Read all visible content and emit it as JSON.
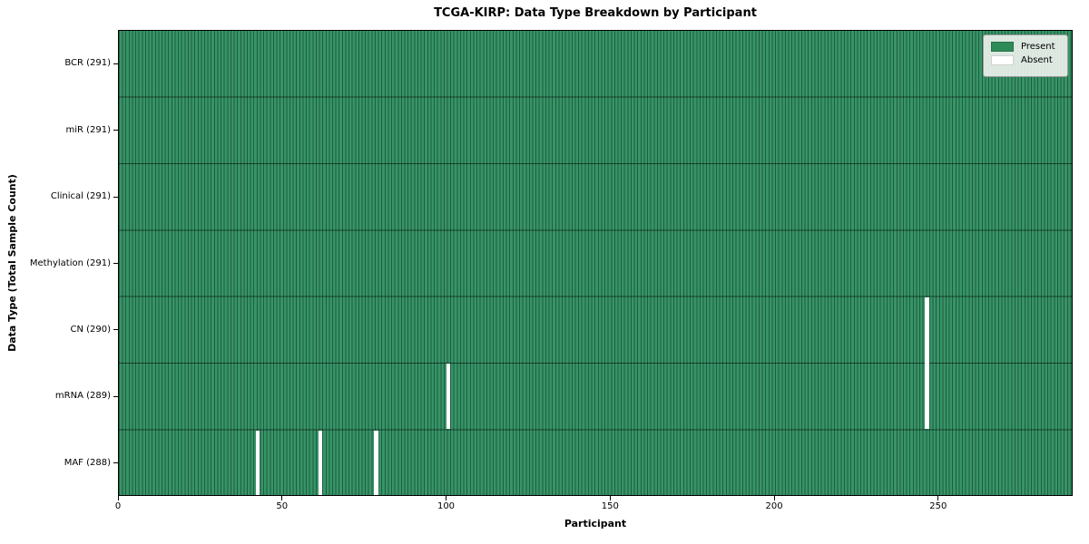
{
  "figure": {
    "title": "TCGA-KIRP: Data Type Breakdown by Participant",
    "xlabel": "Participant",
    "ylabel": "Data Type (Total Sample Count)"
  },
  "colors": {
    "present": "#2e8b57",
    "present_fill": "#389468",
    "cell_edge": "#1d5e3e",
    "row_separator": "rgba(0, 0, 0, 0.55)",
    "absent": "#ffffff",
    "frame": "#000000",
    "legend_background": "#ecf0ec",
    "legend_border": "#9a9a9a"
  },
  "chart_data": {
    "type": "heatmap",
    "title": "TCGA-KIRP: Data Type Breakdown by Participant",
    "xlabel": "Participant",
    "ylabel": "Data Type (Total Sample Count)",
    "xlim": [
      0,
      291
    ],
    "x_ticks": [
      0,
      50,
      100,
      150,
      200,
      250
    ],
    "n_participants": 291,
    "cell_edges": true,
    "legend_position": "upper right",
    "rows": [
      {
        "label": "BCR (291)",
        "name": "BCR",
        "count": 291,
        "absent_participants": []
      },
      {
        "label": "miR (291)",
        "name": "miR",
        "count": 291,
        "absent_participants": []
      },
      {
        "label": "Clinical (291)",
        "name": "Clinical",
        "count": 291,
        "absent_participants": []
      },
      {
        "label": "Methylation (291)",
        "name": "Methylation",
        "count": 291,
        "absent_participants": []
      },
      {
        "label": "CN (290)",
        "name": "CN",
        "count": 290,
        "absent_participants": [
          246
        ]
      },
      {
        "label": "mRNA (289)",
        "name": "mRNA",
        "count": 289,
        "absent_participants": [
          100,
          246
        ]
      },
      {
        "label": "MAF (288)",
        "name": "MAF",
        "count": 288,
        "absent_participants": [
          42,
          61,
          78
        ]
      }
    ],
    "legend": [
      {
        "label": "Present",
        "color": "#2e8b57"
      },
      {
        "label": "Absent",
        "color": "#ffffff"
      }
    ]
  }
}
